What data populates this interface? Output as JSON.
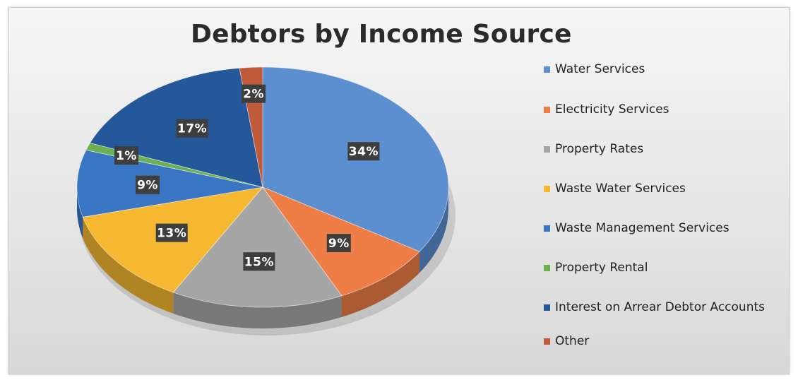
{
  "chart_data": {
    "type": "pie",
    "title": "Debtors by Income Source",
    "categories": [
      "Water Services",
      "Electricity Services",
      "Property Rates",
      "Waste Water Services",
      "Waste Management Services",
      "Property Rental",
      "Interest on Arrear Debtor Accounts",
      "Other"
    ],
    "values": [
      34,
      9,
      15,
      13,
      9,
      1,
      17,
      2
    ],
    "value_labels": [
      "34%",
      "9%",
      "15%",
      "13%",
      "9%",
      "1%",
      "17%",
      "2%"
    ],
    "colors": [
      "#5b8fd0",
      "#ee7e45",
      "#a6a6a6",
      "#f6b731",
      "#3a76c4",
      "#6cb052",
      "#25589a",
      "#bf5a3a"
    ],
    "legend_position": "right",
    "style": "3d"
  }
}
